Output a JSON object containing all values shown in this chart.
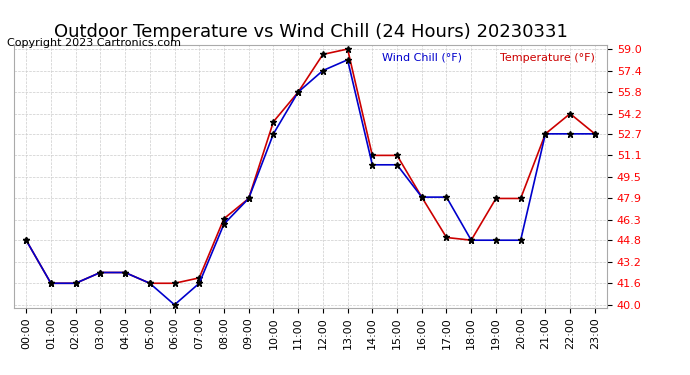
{
  "title": "Outdoor Temperature vs Wind Chill (24 Hours) 20230331",
  "copyright": "Copyright 2023 Cartronics.com",
  "legend_wind_chill": "Wind Chill (°F)",
  "legend_temperature": "Temperature (°F)",
  "x_labels": [
    "00:00",
    "01:00",
    "02:00",
    "03:00",
    "04:00",
    "05:00",
    "06:00",
    "07:00",
    "08:00",
    "09:00",
    "10:00",
    "11:00",
    "12:00",
    "13:00",
    "14:00",
    "15:00",
    "16:00",
    "17:00",
    "18:00",
    "19:00",
    "20:00",
    "21:00",
    "22:00",
    "23:00"
  ],
  "temperature": [
    44.8,
    41.6,
    41.6,
    42.4,
    42.4,
    41.6,
    41.6,
    42.0,
    46.4,
    47.9,
    53.6,
    55.8,
    58.6,
    59.0,
    51.1,
    51.1,
    48.0,
    45.0,
    44.8,
    47.9,
    47.9,
    52.7,
    54.2,
    52.7
  ],
  "wind_chill": [
    44.8,
    41.6,
    41.6,
    42.4,
    42.4,
    41.6,
    40.0,
    41.6,
    46.0,
    47.9,
    52.7,
    55.8,
    57.4,
    58.2,
    50.4,
    50.4,
    48.0,
    48.0,
    44.8,
    44.8,
    44.8,
    52.7,
    52.7,
    52.7
  ],
  "ylim_min": 40.0,
  "ylim_max": 59.0,
  "y_ticks": [
    40.0,
    41.6,
    43.2,
    44.8,
    46.3,
    47.9,
    49.5,
    51.1,
    52.7,
    54.2,
    55.8,
    57.4,
    59.0
  ],
  "temp_color": "#cc0000",
  "wind_chill_color": "#0000cc",
  "bg_color": "#ffffff",
  "grid_color": "#cccccc",
  "title_fontsize": 13,
  "label_fontsize": 8,
  "copyright_fontsize": 8
}
